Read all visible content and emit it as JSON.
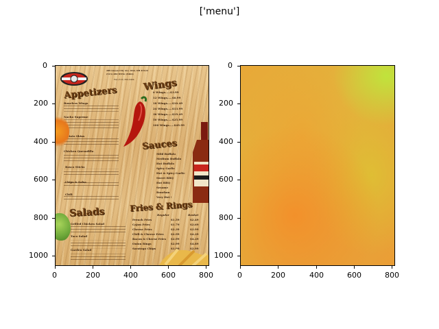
{
  "figure": {
    "title": "['menu']"
  },
  "left_panel": {
    "xticks": [
      "0",
      "200",
      "400",
      "600",
      "800"
    ],
    "yticks": [
      "0",
      "200",
      "400",
      "600",
      "800",
      "1000"
    ]
  },
  "right_panel": {
    "xticks": [
      "0",
      "200",
      "400",
      "600",
      "800"
    ],
    "yticks": [
      "0",
      "200",
      "400",
      "600",
      "800",
      "1000"
    ]
  },
  "menu": {
    "address_1": "289 Queen City Ave. Ofal, OH 45124",
    "address_2": "(513) 280 WING (9464)",
    "fax": "Fax (513) 360-9464",
    "headings": {
      "appetizers": "Appetizers",
      "wings": "Wings",
      "sauces": "Sauces",
      "salads": "Salads",
      "fries": "Fries & Rings"
    },
    "wings_list": [
      "6 Wings.....$3.99",
      "12 Wings.....$6.99",
      "18 Wings.....$10.49",
      "24 Wings.....$13.99",
      "36 Wings.....$19.49",
      "50 Wings.....$25.99",
      "100 Wings.....$49.99"
    ],
    "sauces_list": [
      "Mild Buffalo",
      "Medium Buffalo",
      "Hot Buffalo",
      "Spicy Garlic",
      "Hot & Spicy Garlic",
      "Sweet BBQ",
      "Hot BBQ",
      "Sesame",
      "Bourbon",
      "Very Hot !"
    ],
    "appetizers_list": [
      "Boneless Wings",
      "Nacho Supreme",
      "Potato Skins",
      "Chicken Quesadilla",
      "Bosco Sticks",
      "Chips & Salsa",
      "Chili"
    ],
    "fries_header": [
      "Regular",
      "Basket"
    ],
    "fries_list": [
      [
        "French Fries",
        "$1.59",
        "$2.49"
      ],
      [
        "Cajun Fries",
        "$1.79",
        "$2.69"
      ],
      [
        "Cheese Fries",
        "$2.39",
        "$3.99"
      ],
      [
        "Chili & Cheese Fries",
        "$2.99",
        "$4.29"
      ],
      [
        "Bacon & Cheese Fries",
        "$2.99",
        "$4.29"
      ],
      [
        "Onion Rings",
        "$2.99",
        "$4.89"
      ],
      [
        "Saratoga Chips",
        "$1.99",
        "$2.99"
      ]
    ],
    "salads_list": [
      "Grilled Chicken Salad",
      "Taco Salad",
      "Garden Salad"
    ]
  }
}
